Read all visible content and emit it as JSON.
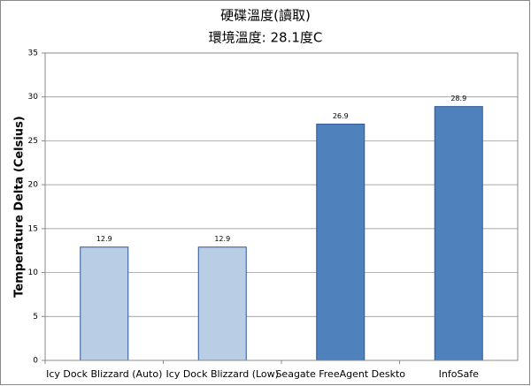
{
  "chart_data": {
    "type": "bar",
    "title": "硬碟溫度(讀取)",
    "subtitle": "環境溫度: 28.1度C",
    "y_label": "Temperature Delta (Celsius)",
    "categories": [
      "Icy Dock Blizzard (Auto)",
      "Icy Dock Blizzard (Low)",
      "Seagate FreeAgent Deskto",
      "InfoSafe"
    ],
    "values": [
      12.9,
      12.9,
      26.9,
      28.9
    ],
    "colors": [
      "#b9cde5",
      "#b9cde5",
      "#4f81bd",
      "#4f81bd"
    ],
    "ylim": [
      0,
      35
    ],
    "yticks": [
      0,
      5,
      10,
      15,
      20,
      25,
      30,
      35
    ],
    "grid": true
  }
}
